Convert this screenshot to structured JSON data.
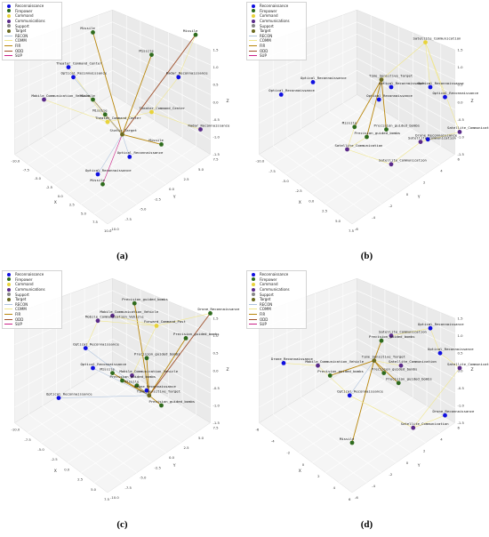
{
  "legend": [
    {
      "label": "Reconnaissance",
      "kind": "dot",
      "color": "#1010e0"
    },
    {
      "label": "Firepower",
      "kind": "dot",
      "color": "#2e6b1d"
    },
    {
      "label": "Command",
      "kind": "dot",
      "color": "#e8d33a"
    },
    {
      "label": "Communications",
      "kind": "dot",
      "color": "#5a2a8a"
    },
    {
      "label": "Support",
      "kind": "dot",
      "color": "#888888"
    },
    {
      "label": "Target",
      "kind": "dot",
      "color": "#6b6b20"
    },
    {
      "label": "RECON",
      "kind": "line",
      "color": "#b0c4de"
    },
    {
      "label": "COMM",
      "kind": "line",
      "color": "#f0e68c"
    },
    {
      "label": "FIR",
      "kind": "line",
      "color": "#b8860b"
    },
    {
      "label": "ODD",
      "kind": "line",
      "color": "#a0522d"
    },
    {
      "label": "SUP",
      "kind": "line",
      "color": "#cc2288"
    }
  ],
  "chart_data": [
    {
      "type": "scatter",
      "caption": "(a)",
      "x_ticks": [
        "-10.0",
        "-7.5",
        "-5.0",
        "-2.5",
        "0.0",
        "2.5",
        "5.0",
        "7.5",
        "10.0"
      ],
      "y_ticks": [
        "7.5",
        "5.0",
        "2.5",
        "0.0",
        "-2.5",
        "-5.0",
        "-7.5",
        "-10.0"
      ],
      "z_ticks": [
        "1.5",
        "1.0",
        "0.5",
        "0.0",
        "-0.5",
        "-1.0",
        "-1.5"
      ],
      "xlabel": "X",
      "ylabel": "Y",
      "zlabel": "Z",
      "nodes": [
        {
          "id": "a1",
          "label": "Missile",
          "type": "Firepower",
          "x": 0.38,
          "y": 0.13
        },
        {
          "id": "a2",
          "label": "Missile",
          "type": "Firepower",
          "x": 0.62,
          "y": 0.22
        },
        {
          "id": "a3",
          "label": "Missile",
          "type": "Firepower",
          "x": 0.8,
          "y": 0.14
        },
        {
          "id": "a4",
          "label": "Theater_Command_Center",
          "type": "Reconnaissance",
          "x": 0.28,
          "y": 0.27
        },
        {
          "id": "a5",
          "label": "Optical_Reconnaissance",
          "type": "Reconnaissance",
          "x": 0.3,
          "y": 0.31
        },
        {
          "id": "a6",
          "label": "Radar_Reconnaissance",
          "type": "Reconnaissance",
          "x": 0.73,
          "y": 0.31
        },
        {
          "id": "a7",
          "label": "Mobile_Communication_Vehicle",
          "type": "Communications",
          "x": 0.18,
          "y": 0.4
        },
        {
          "id": "a8",
          "label": "Missile",
          "type": "Firepower",
          "x": 0.38,
          "y": 0.4
        },
        {
          "id": "a9",
          "label": "Theater_Command_Center",
          "type": "Command",
          "x": 0.62,
          "y": 0.45
        },
        {
          "id": "a10",
          "label": "Missile",
          "type": "Firepower",
          "x": 0.43,
          "y": 0.46
        },
        {
          "id": "a11",
          "label": "Theater_Command_Center",
          "type": "Command",
          "x": 0.44,
          "y": 0.49
        },
        {
          "id": "a12",
          "label": "Radar_Reconnaissance",
          "type": "Communications",
          "x": 0.82,
          "y": 0.52
        },
        {
          "id": "a13",
          "label": "Static_Target",
          "type": "Target",
          "x": 0.5,
          "y": 0.54
        },
        {
          "id": "a14",
          "label": "Missile",
          "type": "Firepower",
          "x": 0.66,
          "y": 0.58
        },
        {
          "id": "a15",
          "label": "Optical_Reconnaissance",
          "type": "Reconnaissance",
          "x": 0.53,
          "y": 0.63
        },
        {
          "id": "a16",
          "label": "Optical_Reconnaissance",
          "type": "Reconnaissance",
          "x": 0.4,
          "y": 0.7
        },
        {
          "id": "a17",
          "label": "Missile",
          "type": "Firepower",
          "x": 0.42,
          "y": 0.74
        }
      ],
      "edges": [
        {
          "from": "a1",
          "to": "a13",
          "type": "FIR"
        },
        {
          "from": "a2",
          "to": "a13",
          "type": "FIR"
        },
        {
          "from": "a3",
          "to": "a13",
          "type": "ODD"
        },
        {
          "from": "a8",
          "to": "a13",
          "type": "FIR"
        },
        {
          "from": "a10",
          "to": "a13",
          "type": "FIR"
        },
        {
          "from": "a14",
          "to": "a13",
          "type": "FIR"
        },
        {
          "from": "a17",
          "to": "a13",
          "type": "SUP"
        },
        {
          "from": "a4",
          "to": "a11",
          "type": "COMM"
        },
        {
          "from": "a5",
          "to": "a13",
          "type": "RECON"
        },
        {
          "from": "a6",
          "to": "a9",
          "type": "COMM"
        },
        {
          "from": "a9",
          "to": "a11",
          "type": "COMM"
        },
        {
          "from": "a7",
          "to": "a11",
          "type": "COMM"
        },
        {
          "from": "a12",
          "to": "a9",
          "type": "COMM"
        },
        {
          "from": "a15",
          "to": "a13",
          "type": "RECON"
        },
        {
          "from": "a16",
          "to": "a13",
          "type": "RECON"
        },
        {
          "from": "a3",
          "to": "a6",
          "type": "COMM"
        }
      ]
    },
    {
      "type": "scatter",
      "caption": "(b)",
      "x_ticks": [
        "-10.0",
        "-7.5",
        "-5.0",
        "-2.5",
        "0.0",
        "2.5",
        "5.0",
        "7.5"
      ],
      "y_ticks": [
        "6",
        "4",
        "2",
        "0",
        "-2",
        "-4",
        "-6"
      ],
      "z_ticks": [
        "1.5",
        "1.0",
        "0.5",
        "0.0",
        "-0.5",
        "-1.0",
        "-1.5"
      ],
      "xlabel": "X",
      "ylabel": "Y",
      "zlabel": "Z",
      "nodes": [
        {
          "id": "b1",
          "label": "Satellite_Communication",
          "type": "Command",
          "x": 0.74,
          "y": 0.17
        },
        {
          "id": "b2",
          "label": "Optical_Reconnaissance",
          "type": "Reconnaissance",
          "x": 0.28,
          "y": 0.33
        },
        {
          "id": "b3",
          "label": "Time_Sensitive_Target",
          "type": "Target",
          "x": 0.56,
          "y": 0.32
        },
        {
          "id": "b4",
          "label": "Optical_Reconnaissance",
          "type": "Reconnaissance",
          "x": 0.6,
          "y": 0.35
        },
        {
          "id": "b5",
          "label": "Optical_Reconnaissance",
          "type": "Reconnaissance",
          "x": 0.76,
          "y": 0.35
        },
        {
          "id": "b6",
          "label": "Optical_Reconnaissance",
          "type": "Reconnaissance",
          "x": 0.15,
          "y": 0.38
        },
        {
          "id": "b7",
          "label": "Optical_Reconnaissance",
          "type": "Reconnaissance",
          "x": 0.55,
          "y": 0.4
        },
        {
          "id": "b8",
          "label": "Optical_Reconnaissance",
          "type": "Reconnaissance",
          "x": 0.82,
          "y": 0.39
        },
        {
          "id": "b9",
          "label": "Missile",
          "type": "Firepower",
          "x": 0.45,
          "y": 0.51
        },
        {
          "id": "b10",
          "label": "Precision_guided_bombs",
          "type": "Firepower",
          "x": 0.58,
          "y": 0.52
        },
        {
          "id": "b11",
          "label": "Precision_guided_bombs",
          "type": "Firepower",
          "x": 0.5,
          "y": 0.55
        },
        {
          "id": "b12",
          "label": "Satellite_Communication",
          "type": "Communications",
          "x": 0.88,
          "y": 0.53
        },
        {
          "id": "b13",
          "label": "Drone_Reconnaissance",
          "type": "Reconnaissance",
          "x": 0.75,
          "y": 0.56
        },
        {
          "id": "b14",
          "label": "Satellite_Communication",
          "type": "Communications",
          "x": 0.72,
          "y": 0.57
        },
        {
          "id": "b15",
          "label": "Satellite_Communication",
          "type": "Communications",
          "x": 0.42,
          "y": 0.6
        },
        {
          "id": "b16",
          "label": "Satellite_Communication",
          "type": "Communications",
          "x": 0.6,
          "y": 0.66
        }
      ],
      "edges": [
        {
          "from": "b9",
          "to": "b3",
          "type": "FIR"
        },
        {
          "from": "b10",
          "to": "b3",
          "type": "FIR"
        },
        {
          "from": "b11",
          "to": "b3",
          "type": "FIR"
        },
        {
          "from": "b1",
          "to": "b3",
          "type": "COMM"
        },
        {
          "from": "b1",
          "to": "b5",
          "type": "COMM"
        },
        {
          "from": "b1",
          "to": "b8",
          "type": "COMM"
        },
        {
          "from": "b1",
          "to": "b12",
          "type": "COMM"
        },
        {
          "from": "b12",
          "to": "b14",
          "type": "COMM"
        },
        {
          "from": "b14",
          "to": "b16",
          "type": "COMM"
        },
        {
          "from": "b15",
          "to": "b16",
          "type": "COMM"
        },
        {
          "from": "b15",
          "to": "b11",
          "type": "COMM"
        },
        {
          "from": "b4",
          "to": "b3",
          "type": "RECON"
        },
        {
          "from": "b7",
          "to": "b3",
          "type": "RECON"
        },
        {
          "from": "b13",
          "to": "b14",
          "type": "COMM"
        },
        {
          "from": "b9",
          "to": "b15",
          "type": "COMM"
        }
      ]
    },
    {
      "type": "scatter",
      "caption": "(c)",
      "x_ticks": [
        "-10.0",
        "-7.5",
        "-5.0",
        "-2.5",
        "0.0",
        "2.5",
        "5.0",
        "7.5"
      ],
      "y_ticks": [
        "7.5",
        "5.0",
        "2.5",
        "0.0",
        "-2.5",
        "-5.0",
        "-7.5",
        "-10.0"
      ],
      "z_ticks": [
        "1.5",
        "1.0",
        "0.5",
        "0.0",
        "-0.5",
        "-1.0",
        "-1.5"
      ],
      "xlabel": "X",
      "ylabel": "Y",
      "zlabel": "Z",
      "nodes": [
        {
          "id": "c1",
          "label": "Precision_guided_bombs",
          "type": "Firepower",
          "x": 0.55,
          "y": 0.14
        },
        {
          "id": "c2",
          "label": "Mobile_Communication_Vehicle",
          "type": "Communications",
          "x": 0.46,
          "y": 0.19
        },
        {
          "id": "c3",
          "label": "Drone_Reconnaissance",
          "type": "Firepower",
          "x": 0.86,
          "y": 0.18
        },
        {
          "id": "c4",
          "label": "Mobile_Communication_Vehicle",
          "type": "Communications",
          "x": 0.4,
          "y": 0.21
        },
        {
          "id": "c5",
          "label": "Forward_Command_Post",
          "type": "Command",
          "x": 0.64,
          "y": 0.23
        },
        {
          "id": "c6",
          "label": "Precision_guided_bombs",
          "type": "Firepower",
          "x": 0.76,
          "y": 0.28
        },
        {
          "id": "c7",
          "label": "Optical_Reconnaissance",
          "type": "Reconnaissance",
          "x": 0.35,
          "y": 0.32
        },
        {
          "id": "c8",
          "label": "Precision_guided_bombs",
          "type": "Firepower",
          "x": 0.6,
          "y": 0.36
        },
        {
          "id": "c9",
          "label": "Optical_Reconnaissance",
          "type": "Reconnaissance",
          "x": 0.38,
          "y": 0.4
        },
        {
          "id": "c10",
          "label": "Missile",
          "type": "Firepower",
          "x": 0.46,
          "y": 0.42
        },
        {
          "id": "c11",
          "label": "Mobile_Communication_Vehicle",
          "type": "Communications",
          "x": 0.54,
          "y": 0.43
        },
        {
          "id": "c12",
          "label": "Precision_guided_bombs",
          "type": "Firepower",
          "x": 0.5,
          "y": 0.45
        },
        {
          "id": "c13",
          "label": "Missile",
          "type": "Firepower",
          "x": 0.56,
          "y": 0.47
        },
        {
          "id": "c14",
          "label": "Drone_Reconnaissance",
          "type": "Reconnaissance",
          "x": 0.6,
          "y": 0.49
        },
        {
          "id": "c15",
          "label": "Time_Sensitive_Target",
          "type": "Target",
          "x": 0.61,
          "y": 0.51
        },
        {
          "id": "c16",
          "label": "Optical_Reconnaissance",
          "type": "Reconnaissance",
          "x": 0.24,
          "y": 0.52
        },
        {
          "id": "c17",
          "label": "Precision_guided_bombs",
          "type": "Firepower",
          "x": 0.66,
          "y": 0.55
        }
      ],
      "edges": [
        {
          "from": "c1",
          "to": "c15",
          "type": "FIR"
        },
        {
          "from": "c3",
          "to": "c15",
          "type": "ODD"
        },
        {
          "from": "c6",
          "to": "c15",
          "type": "FIR"
        },
        {
          "from": "c8",
          "to": "c15",
          "type": "FIR"
        },
        {
          "from": "c10",
          "to": "c15",
          "type": "FIR"
        },
        {
          "from": "c12",
          "to": "c15",
          "type": "FIR"
        },
        {
          "from": "c13",
          "to": "c15",
          "type": "FIR"
        },
        {
          "from": "c17",
          "to": "c15",
          "type": "FIR"
        },
        {
          "from": "c2",
          "to": "c5",
          "type": "COMM"
        },
        {
          "from": "c4",
          "to": "c5",
          "type": "COMM"
        },
        {
          "from": "c5",
          "to": "c3",
          "type": "COMM"
        },
        {
          "from": "c11",
          "to": "c5",
          "type": "COMM"
        },
        {
          "from": "c7",
          "to": "c15",
          "type": "RECON"
        },
        {
          "from": "c9",
          "to": "c15",
          "type": "RECON"
        },
        {
          "from": "c16",
          "to": "c15",
          "type": "RECON"
        },
        {
          "from": "c14",
          "to": "c15",
          "type": "RECON"
        },
        {
          "from": "c4",
          "to": "c7",
          "type": "COMM"
        }
      ]
    },
    {
      "type": "scatter",
      "caption": "(d)",
      "x_ticks": [
        "-6",
        "-4",
        "-2",
        "0",
        "2",
        "4",
        "6"
      ],
      "y_ticks": [
        "6",
        "4",
        "2",
        "0",
        "-2",
        "-4",
        "-6"
      ],
      "z_ticks": [
        "1.5",
        "1.0",
        "0.5",
        "0.0",
        "-0.5",
        "-1.0",
        "-1.5"
      ],
      "xlabel": "X",
      "ylabel": "Y",
      "zlabel": "Z",
      "nodes": [
        {
          "id": "d1",
          "label": "Satellite_Communication",
          "type": "Communications",
          "x": 0.6,
          "y": 0.27
        },
        {
          "id": "d2",
          "label": "Precision_guided_bombs",
          "type": "Firepower",
          "x": 0.56,
          "y": 0.29
        },
        {
          "id": "d3",
          "label": "Optical_Reconnaissance",
          "type": "Reconnaissance",
          "x": 0.76,
          "y": 0.24
        },
        {
          "id": "d4",
          "label": "Optical_Reconnaissance",
          "type": "Reconnaissance",
          "x": 0.8,
          "y": 0.34
        },
        {
          "id": "d5",
          "label": "Satellite_Communication",
          "type": "Communications",
          "x": 0.88,
          "y": 0.4
        },
        {
          "id": "d6",
          "label": "Drone_Reconnaissance",
          "type": "Reconnaissance",
          "x": 0.16,
          "y": 0.38
        },
        {
          "id": "d7",
          "label": "Time_Sensitive_Target",
          "type": "Target",
          "x": 0.53,
          "y": 0.37
        },
        {
          "id": "d8",
          "label": "Satellite_Communication",
          "type": "Communications",
          "x": 0.64,
          "y": 0.39
        },
        {
          "id": "d9",
          "label": "Mobile_Communication_Vehicle",
          "type": "Communications",
          "x": 0.3,
          "y": 0.39
        },
        {
          "id": "d10",
          "label": "Precision_guided_bombs",
          "type": "Firepower",
          "x": 0.35,
          "y": 0.43
        },
        {
          "id": "d11",
          "label": "Precision_guided_bombs",
          "type": "Firepower",
          "x": 0.57,
          "y": 0.42
        },
        {
          "id": "d12",
          "label": "Precision_guided_bombs",
          "type": "Firepower",
          "x": 0.63,
          "y": 0.46
        },
        {
          "id": "d13",
          "label": "Optical_Reconnaissance",
          "type": "Reconnaissance",
          "x": 0.43,
          "y": 0.51
        },
        {
          "id": "d14",
          "label": "Drone_Reconnaissance",
          "type": "Reconnaissance",
          "x": 0.82,
          "y": 0.59
        },
        {
          "id": "d15",
          "label": "Satellite_Communication",
          "type": "Communications",
          "x": 0.69,
          "y": 0.64
        },
        {
          "id": "d16",
          "label": "Missile",
          "type": "Firepower",
          "x": 0.44,
          "y": 0.7
        }
      ],
      "edges": [
        {
          "from": "d2",
          "to": "d7",
          "type": "FIR"
        },
        {
          "from": "d11",
          "to": "d7",
          "type": "FIR"
        },
        {
          "from": "d12",
          "to": "d7",
          "type": "FIR"
        },
        {
          "from": "d10",
          "to": "d7",
          "type": "FIR"
        },
        {
          "from": "d16",
          "to": "d7",
          "type": "FIR"
        },
        {
          "from": "d1",
          "to": "d3",
          "type": "COMM"
        },
        {
          "from": "d3",
          "to": "d4",
          "type": "COMM"
        },
        {
          "from": "d4",
          "to": "d5",
          "type": "COMM"
        },
        {
          "from": "d5",
          "to": "d15",
          "type": "COMM"
        },
        {
          "from": "d15",
          "to": "d14",
          "type": "COMM"
        },
        {
          "from": "d15",
          "to": "d13",
          "type": "COMM"
        },
        {
          "from": "d9",
          "to": "d13",
          "type": "COMM"
        },
        {
          "from": "d6",
          "to": "d9",
          "type": "COMM"
        },
        {
          "from": "d8",
          "to": "d7",
          "type": "COMM"
        },
        {
          "from": "d13",
          "to": "d7",
          "type": "RECON"
        }
      ]
    }
  ]
}
